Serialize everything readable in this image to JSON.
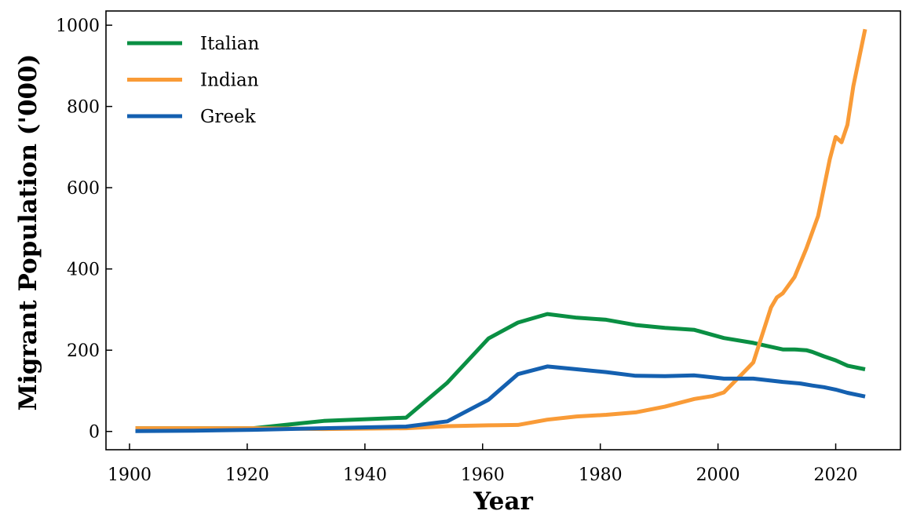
{
  "chart_data": {
    "type": "line",
    "title": "",
    "xlabel": "Year",
    "ylabel": "Migrant Population ('000)",
    "xlim": [
      1896,
      2031
    ],
    "ylim": [
      -45,
      1035
    ],
    "xticks": [
      1900,
      1920,
      1940,
      1960,
      1980,
      2000,
      2020
    ],
    "yticks": [
      0,
      200,
      400,
      600,
      800,
      1000
    ],
    "grid": false,
    "legend_position": "top-left",
    "series": [
      {
        "name": "Italian",
        "color": "#0a8f43",
        "x": [
          1901,
          1911,
          1921,
          1933,
          1947,
          1954,
          1961,
          1966,
          1971,
          1976,
          1981,
          1986,
          1991,
          1996,
          2001,
          2006,
          2011,
          2013,
          2015,
          2016,
          2018,
          2020,
          2022,
          2025
        ],
        "y": [
          8,
          8,
          8,
          26,
          34,
          120,
          229,
          268,
          289,
          280,
          275,
          262,
          255,
          250,
          230,
          218,
          202,
          202,
          200,
          196,
          185,
          175,
          162,
          153
        ]
      },
      {
        "name": "Indian",
        "color": "#f99b37",
        "x": [
          1901,
          1911,
          1921,
          1933,
          1947,
          1954,
          1961,
          1966,
          1971,
          1976,
          1981,
          1986,
          1991,
          1996,
          1999,
          2001,
          2004,
          2006,
          2007,
          2008,
          2009,
          2010,
          2011,
          2013,
          2015,
          2017,
          2019,
          2020,
          2021,
          2022,
          2023,
          2025
        ],
        "y": [
          8,
          8,
          8,
          6,
          8,
          13,
          15,
          16,
          29,
          37,
          41,
          47,
          61,
          80,
          87,
          96,
          140,
          170,
          215,
          260,
          305,
          330,
          340,
          380,
          450,
          530,
          670,
          725,
          712,
          755,
          850,
          990
        ]
      },
      {
        "name": "Greek",
        "color": "#1460b0",
        "x": [
          1901,
          1911,
          1921,
          1933,
          1947,
          1954,
          1961,
          1966,
          1971,
          1976,
          1981,
          1986,
          1991,
          1996,
          2001,
          2006,
          2011,
          2014,
          2016,
          2018,
          2020,
          2022,
          2025
        ],
        "y": [
          1,
          2,
          4,
          8,
          12,
          25,
          78,
          141,
          160,
          153,
          146,
          137,
          136,
          138,
          130,
          130,
          122,
          118,
          113,
          109,
          103,
          95,
          86
        ]
      }
    ]
  }
}
